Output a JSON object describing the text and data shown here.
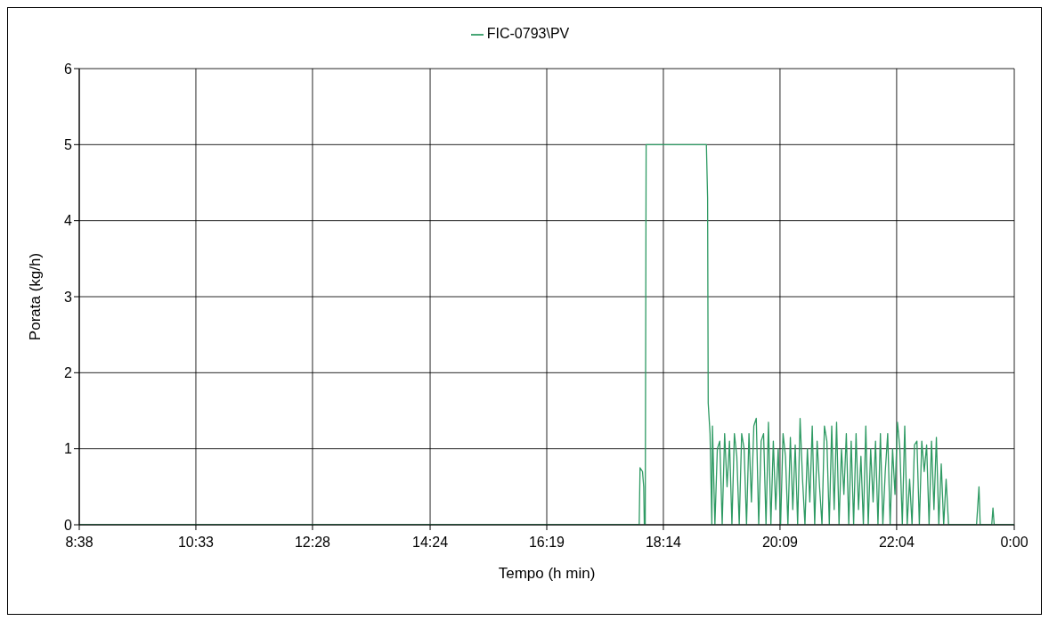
{
  "chart_data": {
    "type": "line",
    "xlabel": "Tempo (h min)",
    "ylabel": "Porata (kg/h)",
    "legend": "top",
    "grid": true,
    "marker": "none",
    "line_style": "solid",
    "xlim": [
      8.6333,
      24
    ],
    "xticks": [
      {
        "value": 8.6333,
        "label": "8:38"
      },
      {
        "value": 10.55,
        "label": "10:33"
      },
      {
        "value": 12.4667,
        "label": "12:28"
      },
      {
        "value": 14.4,
        "label": "14:24"
      },
      {
        "value": 16.3167,
        "label": "16:19"
      },
      {
        "value": 18.2333,
        "label": "18:14"
      },
      {
        "value": 20.15,
        "label": "20:09"
      },
      {
        "value": 22.0667,
        "label": "22:04"
      },
      {
        "value": 24,
        "label": "0:00"
      }
    ],
    "ylim": [
      0,
      6
    ],
    "yticks": [
      0,
      1,
      2,
      3,
      4,
      5,
      6
    ],
    "x": [
      8.6333,
      17.836,
      17.85,
      17.89,
      17.91,
      17.92,
      17.935,
      17.95,
      18.94,
      18.96,
      18.97,
      19.0,
      19.03,
      19.04,
      19.08,
      19.12,
      19.16,
      19.2,
      19.24,
      19.28,
      19.32,
      19.36,
      19.4,
      19.44,
      19.48,
      19.52,
      19.56,
      19.6,
      19.64,
      19.68,
      19.72,
      19.76,
      19.8,
      19.84,
      19.88,
      19.92,
      19.96,
      20.0,
      20.04,
      20.08,
      20.12,
      20.16,
      20.2,
      20.24,
      20.28,
      20.32,
      20.36,
      20.4,
      20.44,
      20.48,
      20.52,
      20.56,
      20.6,
      20.64,
      20.68,
      20.72,
      20.76,
      20.8,
      20.84,
      20.88,
      20.92,
      20.96,
      21.0,
      21.04,
      21.08,
      21.12,
      21.16,
      21.2,
      21.24,
      21.28,
      21.32,
      21.36,
      21.4,
      21.44,
      21.48,
      21.52,
      21.56,
      21.6,
      21.64,
      21.68,
      21.72,
      21.76,
      21.8,
      21.84,
      21.88,
      21.92,
      21.96,
      22.0,
      22.04,
      22.08,
      22.12,
      22.16,
      22.2,
      22.24,
      22.28,
      22.32,
      22.36,
      22.4,
      22.44,
      22.48,
      22.52,
      22.56,
      22.6,
      22.64,
      22.68,
      22.72,
      22.76,
      22.8,
      22.84,
      22.88,
      22.92,
      23.0,
      23.38,
      23.42,
      23.44,
      23.63,
      23.65,
      23.67,
      24
    ],
    "series": [
      {
        "name": "FIC-0793\\PV",
        "color": "#2e9a63",
        "values": [
          0,
          0,
          0.75,
          0.7,
          0.5,
          0,
          0,
          5,
          5,
          4.3,
          1.6,
          1.2,
          0,
          1.3,
          0,
          1.0,
          1.1,
          0,
          1.2,
          0.5,
          1.1,
          0,
          1.2,
          0.9,
          0,
          1.2,
          1.0,
          0,
          1.2,
          0.3,
          1.3,
          1.4,
          0,
          1.1,
          1.2,
          0,
          1.35,
          0,
          1.1,
          0.2,
          1.0,
          0,
          1.2,
          0.9,
          0,
          1.15,
          0.2,
          1.05,
          0,
          1.4,
          0.6,
          0,
          1.0,
          0.3,
          1.3,
          0,
          1.1,
          0.5,
          0,
          1.3,
          1.1,
          0,
          1.3,
          0.2,
          1.35,
          0,
          1.0,
          0.4,
          1.2,
          0,
          1.1,
          0,
          1.2,
          0.2,
          0.9,
          0,
          1.3,
          0,
          1.0,
          0.3,
          1.1,
          0,
          1.2,
          0,
          0.7,
          1.2,
          0,
          1.0,
          0.4,
          1.35,
          1.0,
          0,
          1.3,
          0,
          0.6,
          0,
          1.05,
          1.1,
          0,
          1.1,
          0.7,
          1.05,
          0,
          1.1,
          0.2,
          1.15,
          0,
          0.8,
          0,
          0.6,
          0,
          0,
          0,
          0.5,
          0,
          0,
          0.22,
          0,
          0
        ]
      }
    ]
  }
}
